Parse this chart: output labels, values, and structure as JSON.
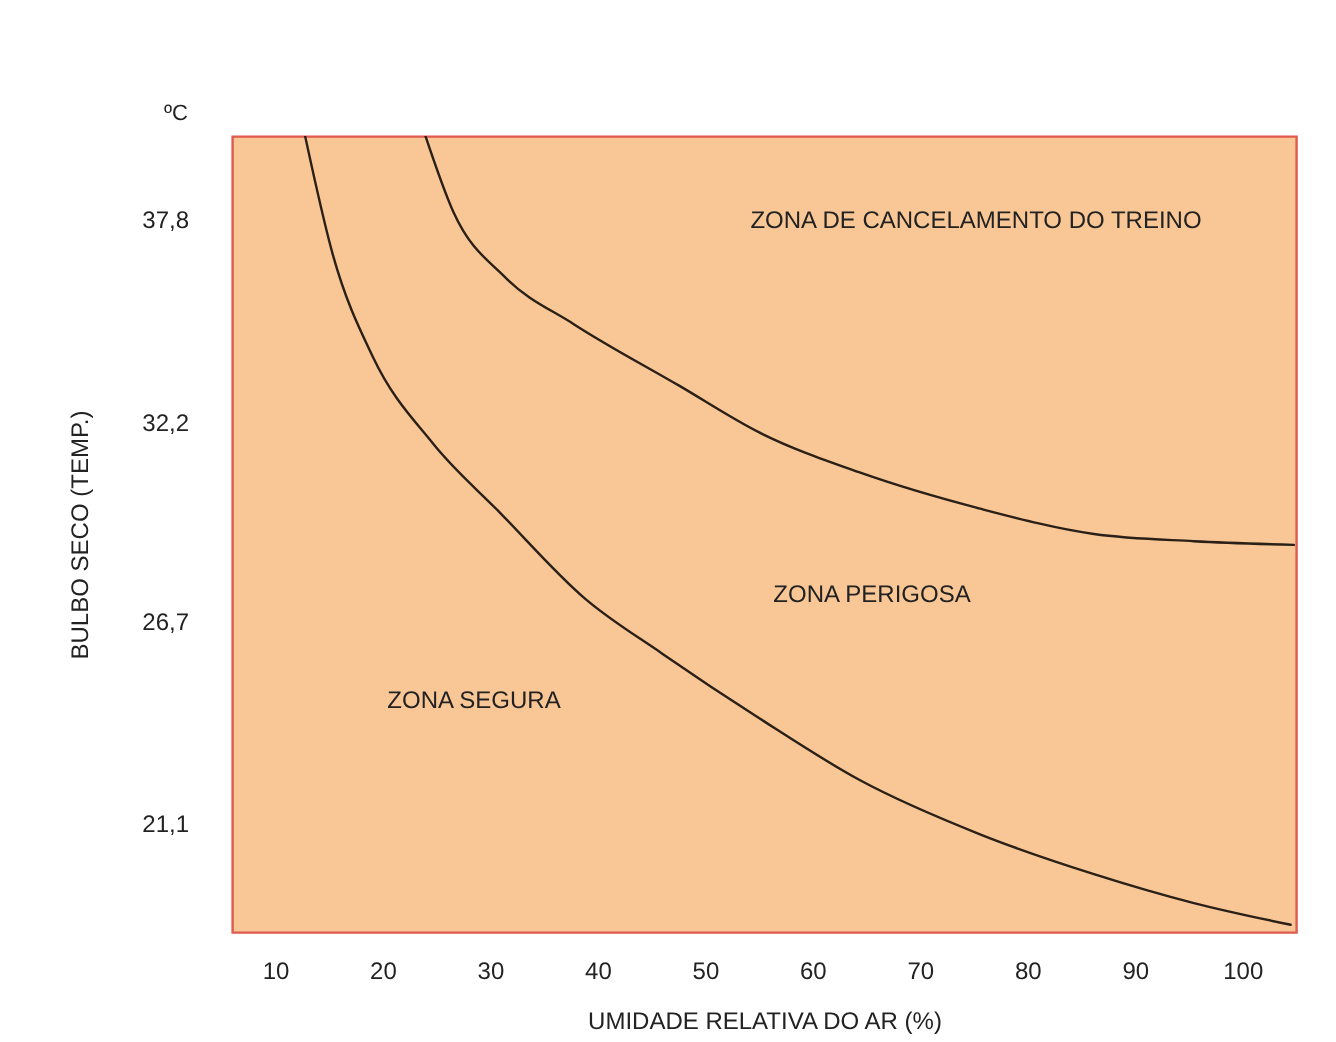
{
  "chart_data": {
    "type": "line",
    "xlabel": "UMIDADE RELATIVA DO AR (%)",
    "ylabel": "BULBO SECO (TEMP.)",
    "xlim": [
      6,
      105
    ],
    "xticks": [
      10,
      20,
      30,
      40,
      50,
      60,
      70,
      80,
      90,
      100
    ],
    "ylim": [
      18.1,
      40.1
    ],
    "yticks": [
      {
        "value": 21.1,
        "label": "21,1"
      },
      {
        "value": 26.7,
        "label": "26,7"
      },
      {
        "value": 32.2,
        "label": "32,2"
      },
      {
        "value": 37.8,
        "label": "37,8"
      }
    ],
    "grid": false,
    "legend": false,
    "marker": "none",
    "line_style": "solid",
    "series": [
      {
        "color": "#2a2018",
        "x": [
          12.8,
          15.4,
          19.1,
          24.7,
          30.9,
          38.9,
          46.0,
          55.1,
          64.4,
          75.6,
          86.2,
          95.5,
          104.5
        ],
        "values": [
          40.1,
          36.8,
          34.0,
          31.6,
          29.7,
          27.3,
          25.8,
          24.0,
          22.3,
          20.8,
          19.7,
          18.9,
          18.3
        ]
      },
      {
        "color": "#2a2018",
        "x": [
          24.0,
          26.6,
          31.4,
          37.8,
          47.6,
          55.1,
          64.4,
          75.6,
          86.2,
          95.5,
          104.8
        ],
        "values": [
          40.1,
          38.0,
          36.2,
          34.9,
          33.2,
          31.9,
          30.8,
          29.8,
          29.1,
          28.9,
          28.8
        ]
      }
    ],
    "annotations": [
      "ºC",
      "ZONA DE CANCELAMENTO DO TREINO",
      "ZONA PERIGOSA",
      "ZONA SEGURA"
    ]
  }
}
